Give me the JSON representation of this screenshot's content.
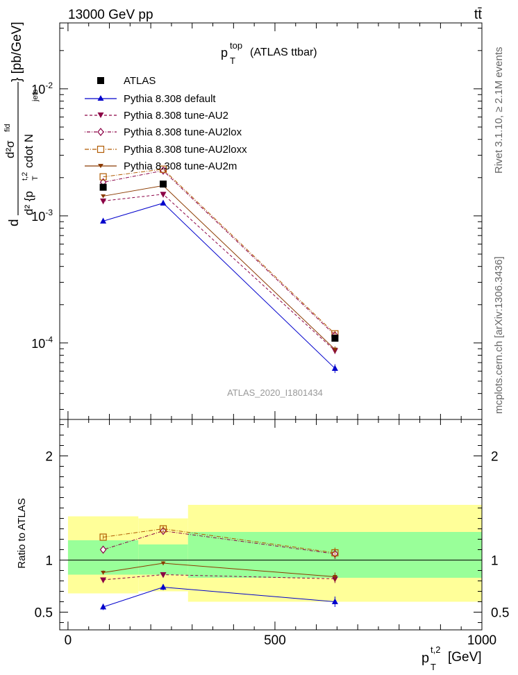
{
  "header": {
    "left": "13000 GeV pp",
    "right": "tt̄"
  },
  "side_labels": {
    "rivet": "Rivet 3.1.10, ≥ 2.1M events",
    "mcplots": "mcplots.cern.ch [arXiv:1306.3436]"
  },
  "colors": {
    "default": "#0000cc",
    "AU2": "#8b0045",
    "AU2lox": "#8b0045",
    "AU2loxx": "#b05a00",
    "AU2m": "#8b3a00",
    "band_inner": "#99ff99",
    "band_outer": "#ffff99"
  },
  "chart_data": [
    {
      "type": "line",
      "title_main": "p",
      "title_sup": "top",
      "title_sub": "T",
      "title_rest": "(ATLAS ttbar)",
      "ylabel": "d²σᵗᵗᵇᵃʳ / d²{p_T^{t,2} cdot N_jets} [pb/GeV]",
      "ylabel_parts": {
        "d1": "d",
        "num": "d²σ",
        "num_sup": "fid",
        "den": "d² {p",
        "den_sub": "T",
        "den_sup": "t,2",
        "den_rest": " cdot N",
        "den_sub2": "jets",
        "unit": "} [pb/GeV]"
      },
      "yscale": "log",
      "ylim": [
        2.5e-05,
        0.033
      ],
      "yticks": [
        {
          "value": 0.0001,
          "base": "10",
          "exp": "-4"
        },
        {
          "value": 0.001,
          "base": "10",
          "exp": "-3"
        },
        {
          "value": 0.01,
          "base": "10",
          "exp": "-2"
        }
      ],
      "watermark": "ATLAS_2020_I1801434",
      "x": [
        85,
        230,
        645
      ],
      "data": {
        "name": "ATLAS",
        "values": [
          0.00168,
          0.00178,
          0.000109
        ]
      },
      "series": [
        {
          "name": "Pythia 8.308 default",
          "values": [
            0.00091,
            0.00126,
            6.3e-05
          ],
          "errors": [
            0,
            0,
            5e-06
          ]
        },
        {
          "name": "Pythia 8.308 tune-AU2",
          "values": [
            0.00131,
            0.00148,
            8.7e-05
          ],
          "errors": [
            0,
            0,
            5e-06
          ]
        },
        {
          "name": "Pythia 8.308 tune-AU2lox",
          "values": [
            0.00184,
            0.00227,
            0.000115
          ],
          "errors": [
            0,
            0,
            6e-06
          ]
        },
        {
          "name": "Pythia 8.308 tune-AU2loxx",
          "values": [
            0.00203,
            0.00233,
            0.000118
          ],
          "errors": [
            0,
            0,
            6e-06
          ]
        },
        {
          "name": "Pythia 8.308 tune-AU2m",
          "values": [
            0.00143,
            0.00173,
            8.9e-05
          ],
          "errors": [
            0,
            0,
            5e-06
          ]
        }
      ]
    },
    {
      "type": "line",
      "ylabel": "Ratio to ATLAS",
      "xlabel_main": "p",
      "xlabel_sub": "T",
      "xlabel_sup": "t,2",
      "xlabel_unit": "[GeV]",
      "xlim": [
        -20,
        1000
      ],
      "xticks": [
        0,
        500,
        1000
      ],
      "ylim": [
        0.33,
        2.35
      ],
      "yticks": [
        0.5,
        1,
        2
      ],
      "bands": [
        {
          "x0": 0,
          "x1": 170,
          "inner": [
            0.86,
            1.19
          ],
          "outer": [
            0.68,
            1.42
          ]
        },
        {
          "x0": 170,
          "x1": 290,
          "inner": [
            0.86,
            1.15
          ],
          "outer": [
            0.7,
            1.4
          ]
        },
        {
          "x0": 290,
          "x1": 1000,
          "inner": [
            0.83,
            1.27
          ],
          "outer": [
            0.6,
            1.53
          ]
        }
      ],
      "series": [
        {
          "name": "Pythia 8.308 default",
          "values": [
            0.55,
            0.74,
            0.6
          ],
          "errors": [
            0.03,
            0.03,
            0.05
          ]
        },
        {
          "name": "Pythia 8.308 tune-AU2",
          "values": [
            0.81,
            0.86,
            0.82
          ],
          "errors": [
            0.02,
            0.02,
            0.04
          ]
        },
        {
          "name": "Pythia 8.308 tune-AU2lox",
          "values": [
            1.1,
            1.28,
            1.06
          ],
          "errors": [
            0.02,
            0.03,
            0.05
          ]
        },
        {
          "name": "Pythia 8.308 tune-AU2loxx",
          "values": [
            1.22,
            1.3,
            1.07
          ],
          "errors": [
            0.02,
            0.03,
            0.05
          ]
        },
        {
          "name": "Pythia 8.308 tune-AU2m",
          "values": [
            0.88,
            0.97,
            0.84
          ],
          "errors": [
            0.02,
            0.02,
            0.04
          ]
        }
      ]
    }
  ]
}
